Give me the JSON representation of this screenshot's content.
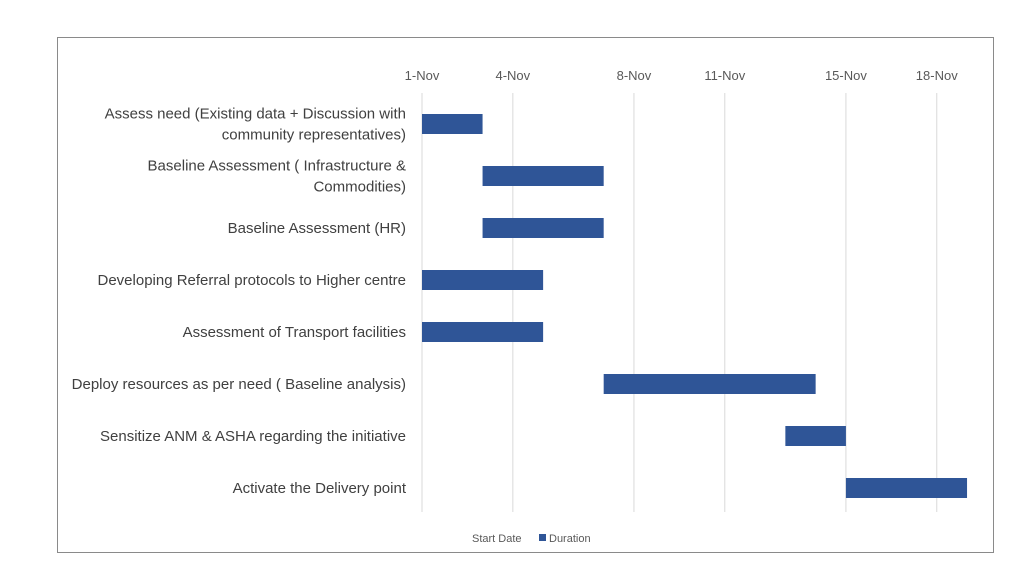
{
  "chart_data": {
    "type": "bar",
    "subtype": "gantt",
    "orientation": "horizontal",
    "title": "",
    "x_axis": {
      "position": "top",
      "min_day": 1,
      "max_day": 20,
      "ticks": [
        {
          "day": 1,
          "label": "1-Nov"
        },
        {
          "day": 4,
          "label": "4-Nov"
        },
        {
          "day": 8,
          "label": "8-Nov"
        },
        {
          "day": 11,
          "label": "11-Nov"
        },
        {
          "day": 15,
          "label": "15-Nov"
        },
        {
          "day": 18,
          "label": "18-Nov"
        }
      ]
    },
    "grid": true,
    "tasks": [
      {
        "label": [
          "Assess need (Existing data + Discussion with",
          "community representatives)"
        ],
        "start": 1,
        "duration": 2
      },
      {
        "label": [
          "Baseline Assessment ( Infrastructure &",
          "Commodities)"
        ],
        "start": 3,
        "duration": 4
      },
      {
        "label": [
          "Baseline Assessment (HR)"
        ],
        "start": 3,
        "duration": 4
      },
      {
        "label": [
          "Developing Referral protocols to Higher centre"
        ],
        "start": 1,
        "duration": 4
      },
      {
        "label": [
          "Assessment of Transport facilities"
        ],
        "start": 1,
        "duration": 4
      },
      {
        "label": [
          "Deploy resources as per need ( Baseline analysis)"
        ],
        "start": 7,
        "duration": 7
      },
      {
        "label": [
          "Sensitize ANM & ASHA regarding the initiative"
        ],
        "start": 13,
        "duration": 2
      },
      {
        "label": [
          "Activate the Delivery point"
        ],
        "start": 15,
        "duration": 4
      }
    ],
    "legend": {
      "placement": "bottom",
      "entries": [
        {
          "name": "Start Date",
          "color": "none"
        },
        {
          "name": "Duration",
          "color": "#2f5597"
        }
      ]
    },
    "colors": {
      "bar": "#2f5597",
      "grid": "#d9d9d9",
      "frame": "#8a8a8a"
    }
  }
}
